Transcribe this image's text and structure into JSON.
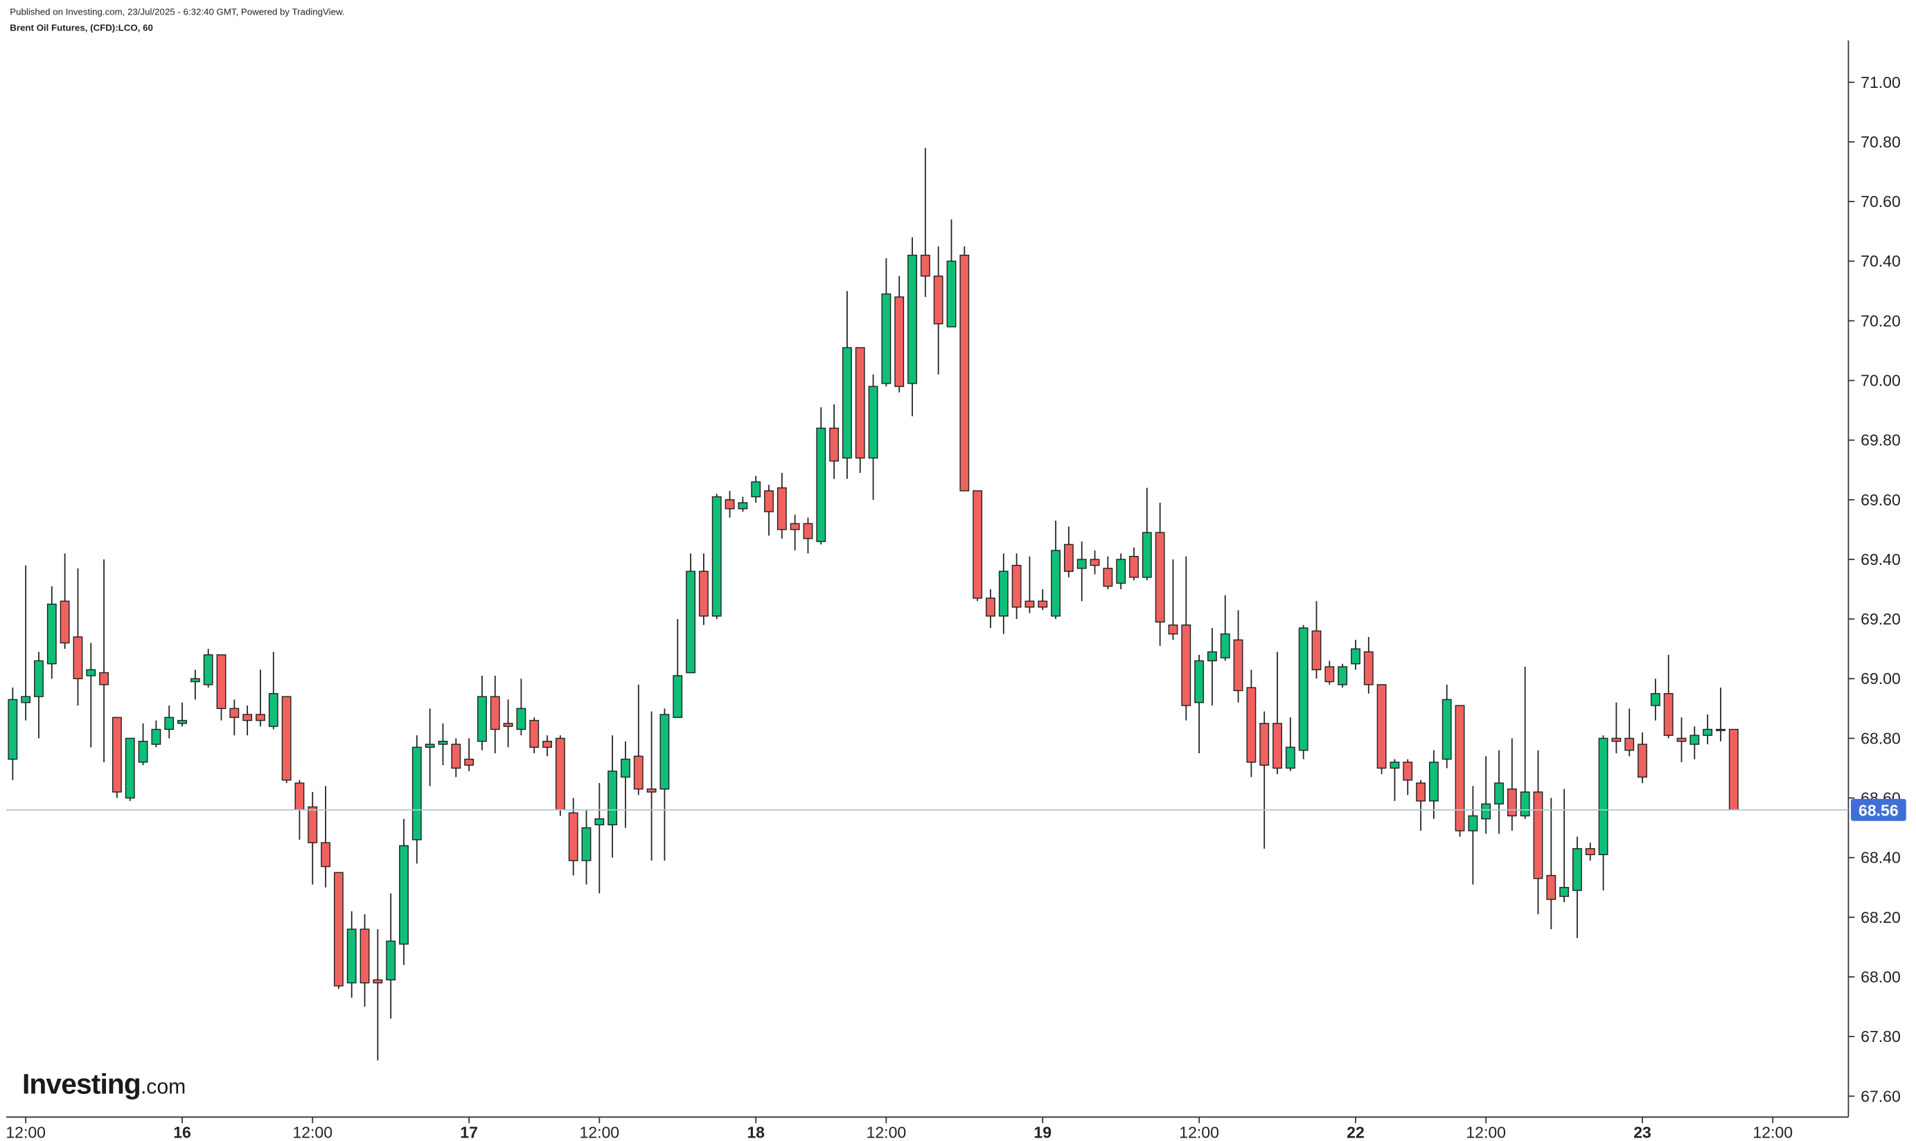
{
  "header": {
    "published": "Published on Investing.com, 23/Jul/2025 - 6:32:40 GMT, Powered by TradingView.",
    "symbol": "Brent Oil Futures, (CFD):LCO, 60"
  },
  "logo": {
    "name": "Investing",
    "suffix": ".com"
  },
  "chart_data": {
    "type": "candlestick",
    "up_color": "#0fbf78",
    "down_color": "#f0625f",
    "open": [
      68.73,
      68.92,
      68.94,
      69.05,
      69.26,
      69.14,
      69.01,
      69.02,
      68.87,
      68.6,
      68.72,
      68.78,
      68.83,
      68.85,
      68.99,
      68.98,
      69.08,
      68.9,
      68.88,
      68.88,
      68.84,
      68.94,
      68.65,
      68.57,
      68.45,
      68.35,
      67.98,
      68.16,
      67.99,
      67.99,
      68.11,
      68.46,
      68.77,
      68.78,
      68.78,
      68.73,
      68.79,
      68.94,
      68.85,
      68.83,
      68.86,
      68.79,
      68.8,
      68.55,
      68.39,
      68.51,
      68.51,
      68.67,
      68.74,
      68.63,
      68.63,
      68.87,
      69.02,
      69.36,
      69.21,
      69.6,
      69.57,
      69.61,
      69.63,
      69.64,
      69.52,
      69.52,
      69.46,
      69.84,
      69.74,
      70.11,
      69.74,
      69.99,
      70.28,
      69.99,
      70.42,
      70.35,
      70.18,
      70.42,
      69.63,
      69.27,
      69.21,
      69.38,
      69.26,
      69.26,
      69.21,
      69.45,
      69.37,
      69.4,
      69.37,
      69.32,
      69.41,
      69.34,
      69.49,
      69.18,
      69.18,
      68.92,
      69.06,
      69.07,
      69.13,
      68.97,
      68.85,
      68.85,
      68.7,
      68.76,
      69.16,
      69.04,
      68.98,
      69.05,
      69.09,
      68.98,
      68.7,
      68.72,
      68.65,
      68.59,
      68.73,
      68.91,
      68.49,
      68.53,
      68.58,
      68.63,
      68.54,
      68.62,
      68.34,
      68.27,
      68.29,
      68.43,
      68.41,
      68.8,
      68.8,
      68.78,
      68.91,
      68.95,
      68.8,
      68.78,
      68.81,
      68.83,
      68.83
    ],
    "high": [
      68.97,
      69.38,
      69.09,
      69.31,
      69.42,
      69.37,
      69.12,
      69.4,
      68.87,
      68.8,
      68.85,
      68.86,
      68.91,
      68.92,
      69.03,
      69.1,
      69.08,
      68.93,
      68.91,
      69.03,
      69.09,
      68.94,
      68.66,
      68.62,
      68.64,
      68.35,
      68.22,
      68.21,
      68.16,
      68.28,
      68.53,
      68.81,
      68.9,
      68.85,
      68.8,
      68.8,
      69.01,
      69.01,
      68.93,
      69.0,
      68.87,
      68.81,
      68.81,
      68.6,
      68.56,
      68.65,
      68.81,
      68.79,
      68.98,
      68.89,
      68.9,
      69.2,
      69.42,
      69.42,
      69.62,
      69.63,
      69.61,
      69.68,
      69.65,
      69.69,
      69.55,
      69.54,
      69.91,
      69.92,
      70.3,
      70.11,
      70.02,
      70.41,
      70.35,
      70.48,
      70.78,
      70.45,
      70.54,
      70.45,
      69.63,
      69.3,
      69.42,
      69.42,
      69.41,
      69.3,
      69.53,
      69.51,
      69.46,
      69.43,
      69.41,
      69.42,
      69.44,
      69.64,
      69.59,
      69.4,
      69.41,
      69.08,
      69.17,
      69.28,
      69.23,
      69.03,
      68.89,
      69.09,
      68.87,
      69.18,
      69.26,
      69.06,
      69.05,
      69.13,
      69.14,
      68.98,
      68.73,
      68.73,
      68.66,
      68.76,
      68.98,
      68.91,
      68.64,
      68.74,
      68.76,
      68.8,
      69.04,
      68.76,
      68.6,
      68.63,
      68.47,
      68.45,
      68.81,
      68.92,
      68.9,
      68.82,
      69.0,
      69.08,
      68.87,
      68.84,
      68.88,
      68.97,
      68.83
    ],
    "low": [
      68.66,
      68.86,
      68.8,
      69.0,
      69.1,
      68.91,
      68.77,
      68.72,
      68.6,
      68.59,
      68.71,
      68.77,
      68.8,
      68.84,
      68.93,
      68.97,
      68.86,
      68.81,
      68.81,
      68.84,
      68.83,
      68.65,
      68.46,
      68.31,
      68.3,
      67.96,
      67.93,
      67.9,
      67.72,
      67.86,
      68.04,
      68.38,
      68.64,
      68.71,
      68.67,
      68.69,
      68.76,
      68.75,
      68.77,
      68.81,
      68.75,
      68.74,
      68.54,
      68.34,
      68.31,
      68.28,
      68.4,
      68.5,
      68.61,
      68.39,
      68.39,
      68.87,
      69.02,
      69.18,
      69.2,
      69.54,
      69.56,
      69.59,
      69.48,
      69.47,
      69.43,
      69.42,
      69.45,
      69.67,
      69.67,
      69.69,
      69.6,
      69.98,
      69.96,
      69.88,
      70.28,
      70.02,
      70.18,
      69.63,
      69.26,
      69.17,
      69.15,
      69.2,
      69.22,
      69.23,
      69.2,
      69.34,
      69.26,
      69.35,
      69.3,
      69.3,
      69.33,
      69.33,
      69.11,
      69.13,
      68.86,
      68.75,
      68.91,
      69.06,
      68.92,
      68.67,
      68.43,
      68.68,
      68.69,
      68.73,
      69.0,
      68.98,
      68.97,
      69.03,
      68.95,
      68.68,
      68.59,
      68.61,
      68.49,
      68.53,
      68.7,
      68.47,
      68.31,
      68.48,
      68.48,
      68.49,
      68.53,
      68.21,
      68.16,
      68.25,
      68.13,
      68.39,
      68.29,
      68.75,
      68.74,
      68.65,
      68.86,
      68.8,
      68.72,
      68.73,
      68.78,
      68.79,
      68.56
    ],
    "close": [
      68.93,
      68.94,
      69.06,
      69.25,
      69.12,
      69.0,
      69.03,
      68.98,
      68.62,
      68.8,
      68.79,
      68.83,
      68.87,
      68.86,
      69.0,
      69.08,
      68.9,
      68.87,
      68.86,
      68.86,
      68.95,
      68.66,
      68.56,
      68.45,
      68.37,
      67.97,
      68.16,
      67.98,
      67.98,
      68.12,
      68.44,
      68.77,
      68.78,
      68.79,
      68.7,
      68.71,
      68.94,
      68.83,
      68.84,
      68.9,
      68.77,
      68.77,
      68.56,
      68.39,
      68.5,
      68.53,
      68.69,
      68.73,
      68.63,
      68.62,
      68.88,
      69.01,
      69.36,
      69.21,
      69.61,
      69.57,
      69.59,
      69.66,
      69.56,
      69.5,
      69.5,
      69.47,
      69.84,
      69.73,
      70.11,
      69.74,
      69.98,
      70.29,
      69.98,
      70.42,
      70.35,
      70.19,
      70.4,
      69.63,
      69.27,
      69.21,
      69.36,
      69.24,
      69.24,
      69.24,
      69.43,
      69.36,
      69.4,
      69.38,
      69.31,
      69.4,
      69.34,
      69.49,
      69.19,
      69.15,
      68.91,
      69.06,
      69.09,
      69.15,
      68.96,
      68.72,
      68.71,
      68.7,
      68.77,
      69.17,
      69.03,
      68.99,
      69.04,
      69.1,
      68.98,
      68.7,
      68.72,
      68.66,
      68.59,
      68.72,
      68.93,
      68.49,
      68.54,
      68.58,
      68.65,
      68.54,
      68.62,
      68.33,
      68.26,
      68.3,
      68.43,
      68.41,
      68.8,
      68.79,
      68.76,
      68.67,
      68.95,
      68.81,
      68.79,
      68.81,
      68.83,
      68.83,
      68.56
    ],
    "last_price": 68.56,
    "last_price_color": "#3d6fd6",
    "xlim": [
      -0.5,
      140.8
    ],
    "xticks": [
      {
        "value": 1,
        "label": "12:00"
      },
      {
        "value": 13,
        "label": "16"
      },
      {
        "value": 23,
        "label": "12:00"
      },
      {
        "value": 35,
        "label": "17"
      },
      {
        "value": 45,
        "label": "12:00"
      },
      {
        "value": 57,
        "label": "18"
      },
      {
        "value": 67,
        "label": "12:00"
      },
      {
        "value": 79,
        "label": "19"
      },
      {
        "value": 91,
        "label": "12:00"
      },
      {
        "value": 103,
        "label": "22"
      },
      {
        "value": 113,
        "label": "12:00"
      },
      {
        "value": 125,
        "label": "23"
      },
      {
        "value": 135,
        "label": "12:00"
      }
    ],
    "ylim": [
      67.53,
      71.14
    ],
    "yticks": [
      {
        "value": 67.6,
        "label": "67.60"
      },
      {
        "value": 67.8,
        "label": "67.80"
      },
      {
        "value": 68.0,
        "label": "68.00"
      },
      {
        "value": 68.2,
        "label": "68.20"
      },
      {
        "value": 68.4,
        "label": "68.40"
      },
      {
        "value": 68.6,
        "label": "68.60"
      },
      {
        "value": 68.8,
        "label": "68.80"
      },
      {
        "value": 69.0,
        "label": "69.00"
      },
      {
        "value": 69.2,
        "label": "69.20"
      },
      {
        "value": 69.4,
        "label": "69.40"
      },
      {
        "value": 69.6,
        "label": "69.60"
      },
      {
        "value": 69.8,
        "label": "69.80"
      },
      {
        "value": 70.0,
        "label": "70.00"
      },
      {
        "value": 70.2,
        "label": "70.20"
      },
      {
        "value": 70.4,
        "label": "70.40"
      },
      {
        "value": 70.6,
        "label": "70.60"
      },
      {
        "value": 70.8,
        "label": "70.80"
      },
      {
        "value": 71.0,
        "label": "71.00"
      }
    ],
    "grid": false
  }
}
